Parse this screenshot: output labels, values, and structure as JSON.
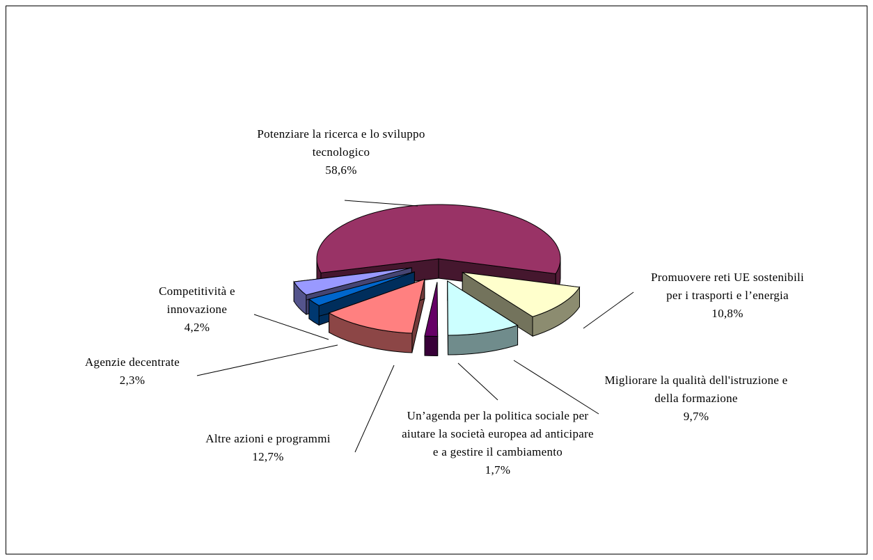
{
  "chart_data": {
    "type": "pie3d",
    "categories": [
      "Potenziare la ricerca e lo sviluppo tecnologico",
      "Promuovere reti UE sostenibili per i trasporti e l’energia",
      "Migliorare la qualità dell'istruzione e della formazione",
      "Un’agenda per la politica sociale per aiutare la società europea ad anticipare e a gestire il cambiamento",
      "Altre azioni e programmi",
      "Agenzie decentrate",
      "Competitività e innovazione"
    ],
    "values": [
      58.6,
      10.8,
      9.7,
      1.7,
      12.7,
      2.3,
      4.2
    ],
    "value_labels": [
      "58,6%",
      "10,8%",
      "9,7%",
      "1,7%",
      "12,7%",
      "2,3%",
      "4,2%"
    ],
    "colors": [
      "#993366",
      "#ffffcc",
      "#ccffff",
      "#660066",
      "#ff8080",
      "#0066cc",
      "#9999ff"
    ]
  }
}
